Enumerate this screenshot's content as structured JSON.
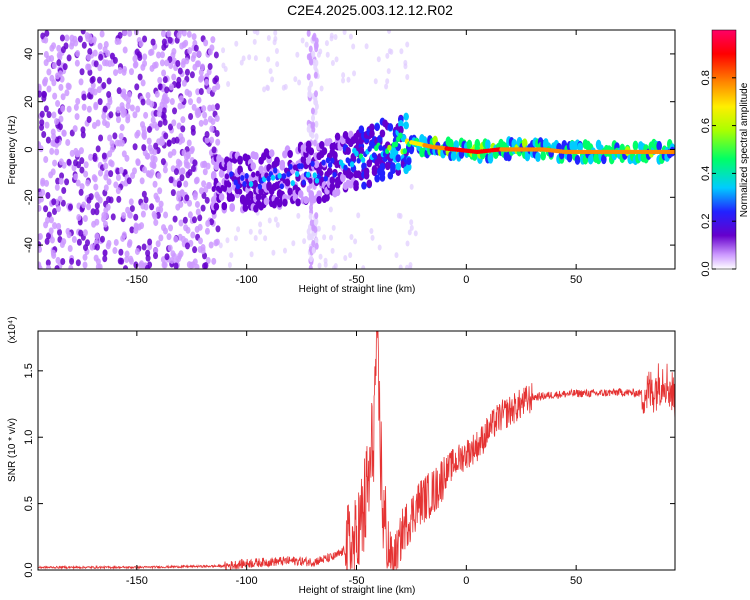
{
  "figure": {
    "title": "C2E4.2025.003.12.12.R02"
  },
  "chart_data": [
    {
      "type": "heatmap",
      "panel": "top",
      "xlabel": "Height of straight line (km)",
      "ylabel": "Frequency (Hz)",
      "xlim": [
        -195,
        95
      ],
      "ylim": [
        -50,
        50
      ],
      "xticks": [
        -150,
        -100,
        -50,
        0,
        50
      ],
      "yticks": [
        -40,
        -20,
        0,
        20,
        40
      ],
      "colorbar": {
        "label": "Normalized spectral amplitude",
        "range": [
          0.0,
          1.0
        ],
        "ticks": [
          0.0,
          0.2,
          0.4,
          0.6,
          0.8
        ],
        "colors": [
          "#ffffff",
          "#cc99ff",
          "#6600cc",
          "#2222ff",
          "#00ccff",
          "#00ff66",
          "#aaff00",
          "#ffee00",
          "#ff8800",
          "#ff0000",
          "#ff0066"
        ]
      },
      "ridge": {
        "x": [
          -115,
          -105,
          -95,
          -85,
          -75,
          -65,
          -55,
          -45,
          -35,
          -25,
          -15,
          -5,
          5,
          15,
          25,
          35,
          45,
          55,
          65,
          75,
          85,
          95
        ],
        "freq": [
          -15,
          -14,
          -13,
          -12,
          -10,
          -9,
          -5,
          -3,
          1,
          3,
          1,
          0,
          -1,
          0,
          0,
          0,
          -1,
          -1,
          -1,
          -1,
          -1,
          -1
        ],
        "amplitude": [
          0.25,
          0.28,
          0.3,
          0.3,
          0.3,
          0.3,
          0.35,
          0.45,
          0.55,
          0.7,
          0.85,
          0.95,
          0.95,
          0.9,
          0.85,
          0.85,
          0.85,
          0.85,
          0.85,
          0.85,
          0.85,
          0.8
        ]
      }
    },
    {
      "type": "line",
      "panel": "bottom",
      "xlabel": "Height of straight line (km)",
      "ylabel": "SNR (10 * v/v)",
      "scale_label": "(x10⁴)",
      "xlim": [
        -195,
        95
      ],
      "ylim": [
        0,
        1.8
      ],
      "xticks": [
        -150,
        -100,
        -50,
        0,
        50
      ],
      "yticks": [
        "0.0",
        "0.5",
        "1.0",
        "1.5"
      ],
      "grid": false,
      "series": [
        {
          "color": "#e53333",
          "x": [
            -195,
            -150,
            -110,
            -100,
            -90,
            -80,
            -70,
            -60,
            -55,
            -50,
            -47,
            -44,
            -42,
            -41,
            -40,
            -39,
            -38,
            -37,
            -35,
            -33,
            -31,
            -29,
            -27,
            -25,
            -22,
            -18,
            -14,
            -10,
            -6,
            -2,
            2,
            6,
            10,
            15,
            20,
            25,
            30,
            40,
            50,
            60,
            70,
            80,
            85,
            90,
            95
          ],
          "y": [
            0.02,
            0.02,
            0.03,
            0.05,
            0.06,
            0.07,
            0.06,
            0.1,
            0.15,
            0.2,
            0.4,
            0.7,
            1.1,
            1.7,
            1.35,
            0.9,
            0.45,
            0.3,
            0.12,
            0.08,
            0.15,
            0.3,
            0.35,
            0.4,
            0.5,
            0.55,
            0.6,
            0.72,
            0.8,
            0.85,
            0.9,
            0.95,
            1.05,
            1.15,
            1.2,
            1.25,
            1.3,
            1.32,
            1.33,
            1.33,
            1.34,
            1.33,
            1.35,
            1.45,
            1.3
          ]
        }
      ]
    }
  ]
}
